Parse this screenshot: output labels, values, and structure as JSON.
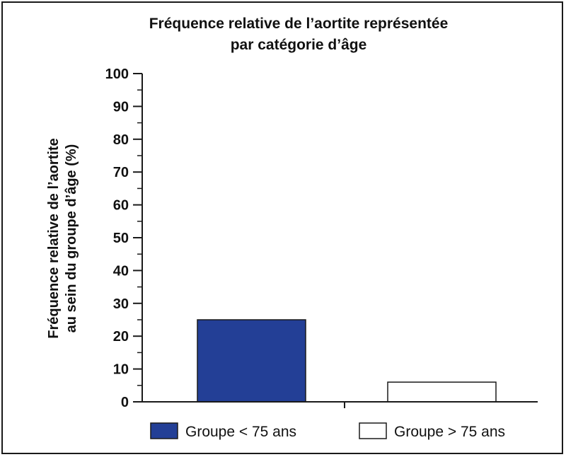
{
  "chart_data": {
    "type": "bar",
    "title_lines": [
      "Fréquence relative de l’aortite représentée",
      "par catégorie d’âge"
    ],
    "ylabel_lines": [
      "Fréquence relative de l’aortite",
      "au sein du groupe d’âge (%)"
    ],
    "xlabel": "",
    "ylim": [
      0,
      100
    ],
    "yticks": [
      "0",
      "10",
      "20",
      "30",
      "40",
      "50",
      "60",
      "70",
      "80",
      "90",
      "100"
    ],
    "series": [
      {
        "name": "Groupe < 75 ans",
        "value": 25,
        "color": "#233f96"
      },
      {
        "name": "Groupe > 75 ans",
        "value": 6,
        "color": "#ffffff"
      }
    ],
    "grid": false,
    "legend_position": "bottom"
  }
}
